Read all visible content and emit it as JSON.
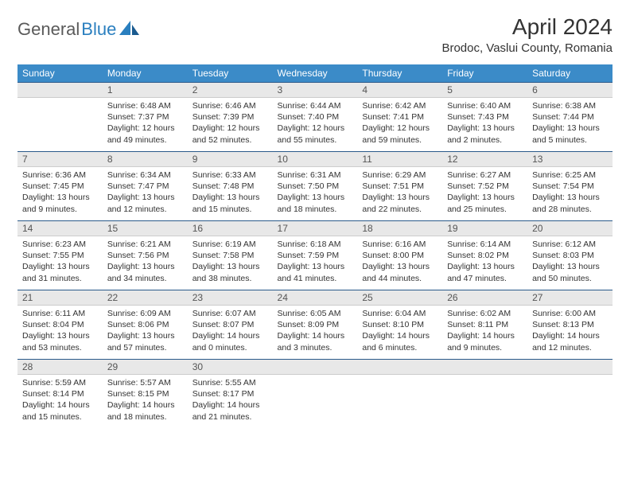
{
  "logo": {
    "text1": "General",
    "text2": "Blue"
  },
  "title": "April 2024",
  "location": "Brodoc, Vaslui County, Romania",
  "colors": {
    "header_bg": "#3b8bc8",
    "header_text": "#ffffff",
    "daynum_bg": "#e8e8e8",
    "border_top": "#2a5a8a",
    "logo_gray": "#5a5a5a",
    "logo_blue": "#2a7fbf"
  },
  "weekdays": [
    "Sunday",
    "Monday",
    "Tuesday",
    "Wednesday",
    "Thursday",
    "Friday",
    "Saturday"
  ],
  "weeks": [
    {
      "nums": [
        "",
        "1",
        "2",
        "3",
        "4",
        "5",
        "6"
      ],
      "cells": [
        null,
        {
          "sunrise": "6:48 AM",
          "sunset": "7:37 PM",
          "daylight": "12 hours and 49 minutes."
        },
        {
          "sunrise": "6:46 AM",
          "sunset": "7:39 PM",
          "daylight": "12 hours and 52 minutes."
        },
        {
          "sunrise": "6:44 AM",
          "sunset": "7:40 PM",
          "daylight": "12 hours and 55 minutes."
        },
        {
          "sunrise": "6:42 AM",
          "sunset": "7:41 PM",
          "daylight": "12 hours and 59 minutes."
        },
        {
          "sunrise": "6:40 AM",
          "sunset": "7:43 PM",
          "daylight": "13 hours and 2 minutes."
        },
        {
          "sunrise": "6:38 AM",
          "sunset": "7:44 PM",
          "daylight": "13 hours and 5 minutes."
        }
      ]
    },
    {
      "nums": [
        "7",
        "8",
        "9",
        "10",
        "11",
        "12",
        "13"
      ],
      "cells": [
        {
          "sunrise": "6:36 AM",
          "sunset": "7:45 PM",
          "daylight": "13 hours and 9 minutes."
        },
        {
          "sunrise": "6:34 AM",
          "sunset": "7:47 PM",
          "daylight": "13 hours and 12 minutes."
        },
        {
          "sunrise": "6:33 AM",
          "sunset": "7:48 PM",
          "daylight": "13 hours and 15 minutes."
        },
        {
          "sunrise": "6:31 AM",
          "sunset": "7:50 PM",
          "daylight": "13 hours and 18 minutes."
        },
        {
          "sunrise": "6:29 AM",
          "sunset": "7:51 PM",
          "daylight": "13 hours and 22 minutes."
        },
        {
          "sunrise": "6:27 AM",
          "sunset": "7:52 PM",
          "daylight": "13 hours and 25 minutes."
        },
        {
          "sunrise": "6:25 AM",
          "sunset": "7:54 PM",
          "daylight": "13 hours and 28 minutes."
        }
      ]
    },
    {
      "nums": [
        "14",
        "15",
        "16",
        "17",
        "18",
        "19",
        "20"
      ],
      "cells": [
        {
          "sunrise": "6:23 AM",
          "sunset": "7:55 PM",
          "daylight": "13 hours and 31 minutes."
        },
        {
          "sunrise": "6:21 AM",
          "sunset": "7:56 PM",
          "daylight": "13 hours and 34 minutes."
        },
        {
          "sunrise": "6:19 AM",
          "sunset": "7:58 PM",
          "daylight": "13 hours and 38 minutes."
        },
        {
          "sunrise": "6:18 AM",
          "sunset": "7:59 PM",
          "daylight": "13 hours and 41 minutes."
        },
        {
          "sunrise": "6:16 AM",
          "sunset": "8:00 PM",
          "daylight": "13 hours and 44 minutes."
        },
        {
          "sunrise": "6:14 AM",
          "sunset": "8:02 PM",
          "daylight": "13 hours and 47 minutes."
        },
        {
          "sunrise": "6:12 AM",
          "sunset": "8:03 PM",
          "daylight": "13 hours and 50 minutes."
        }
      ]
    },
    {
      "nums": [
        "21",
        "22",
        "23",
        "24",
        "25",
        "26",
        "27"
      ],
      "cells": [
        {
          "sunrise": "6:11 AM",
          "sunset": "8:04 PM",
          "daylight": "13 hours and 53 minutes."
        },
        {
          "sunrise": "6:09 AM",
          "sunset": "8:06 PM",
          "daylight": "13 hours and 57 minutes."
        },
        {
          "sunrise": "6:07 AM",
          "sunset": "8:07 PM",
          "daylight": "14 hours and 0 minutes."
        },
        {
          "sunrise": "6:05 AM",
          "sunset": "8:09 PM",
          "daylight": "14 hours and 3 minutes."
        },
        {
          "sunrise": "6:04 AM",
          "sunset": "8:10 PM",
          "daylight": "14 hours and 6 minutes."
        },
        {
          "sunrise": "6:02 AM",
          "sunset": "8:11 PM",
          "daylight": "14 hours and 9 minutes."
        },
        {
          "sunrise": "6:00 AM",
          "sunset": "8:13 PM",
          "daylight": "14 hours and 12 minutes."
        }
      ]
    },
    {
      "nums": [
        "28",
        "29",
        "30",
        "",
        "",
        "",
        ""
      ],
      "cells": [
        {
          "sunrise": "5:59 AM",
          "sunset": "8:14 PM",
          "daylight": "14 hours and 15 minutes."
        },
        {
          "sunrise": "5:57 AM",
          "sunset": "8:15 PM",
          "daylight": "14 hours and 18 minutes."
        },
        {
          "sunrise": "5:55 AM",
          "sunset": "8:17 PM",
          "daylight": "14 hours and 21 minutes."
        },
        null,
        null,
        null,
        null
      ]
    }
  ],
  "labels": {
    "sunrise": "Sunrise:",
    "sunset": "Sunset:",
    "daylight": "Daylight:"
  }
}
